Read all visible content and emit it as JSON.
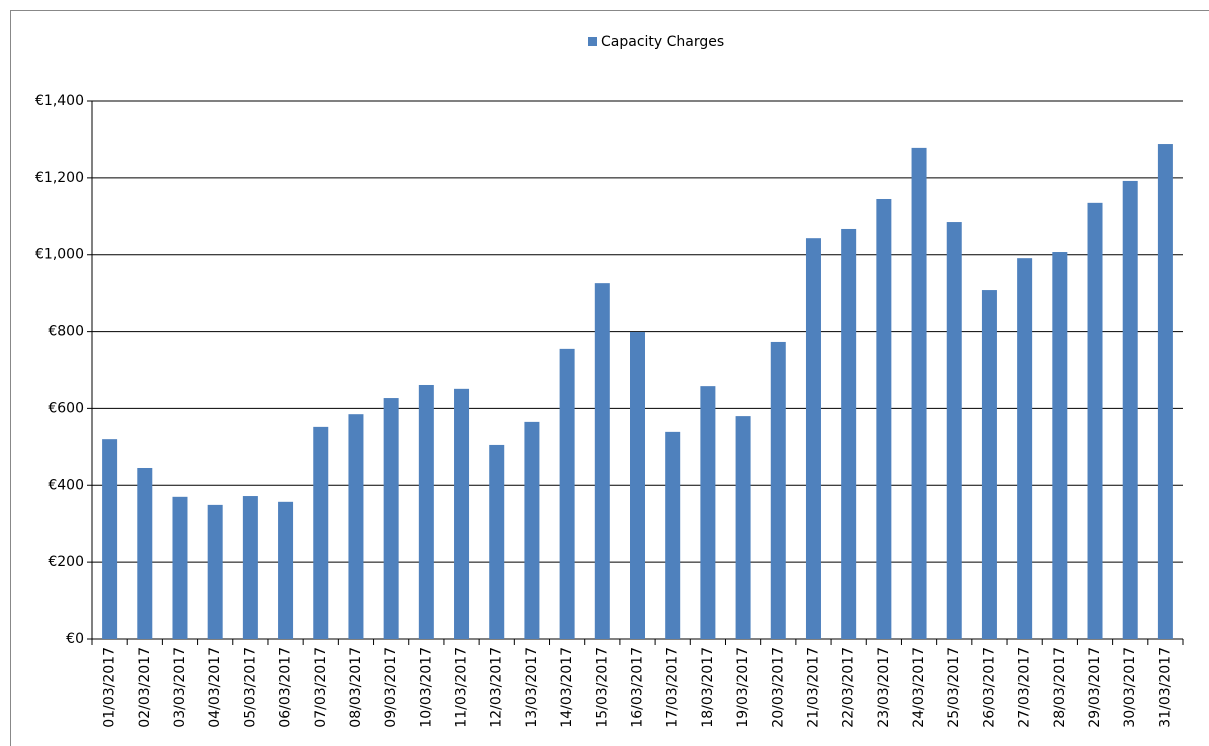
{
  "chart_data": {
    "type": "bar",
    "categories": [
      "01/03/2017",
      "02/03/2017",
      "03/03/2017",
      "04/03/2017",
      "05/03/2017",
      "06/03/2017",
      "07/03/2017",
      "08/03/2017",
      "09/03/2017",
      "10/03/2017",
      "11/03/2017",
      "12/03/2017",
      "13/03/2017",
      "14/03/2017",
      "15/03/2017",
      "16/03/2017",
      "17/03/2017",
      "18/03/2017",
      "19/03/2017",
      "20/03/2017",
      "21/03/2017",
      "22/03/2017",
      "23/03/2017",
      "24/03/2017",
      "25/03/2017",
      "26/03/2017",
      "27/03/2017",
      "28/03/2017",
      "29/03/2017",
      "30/03/2017",
      "31/03/2017"
    ],
    "series": [
      {
        "name": "Capacity Charges",
        "color": "#4f81bd",
        "values": [
          520,
          445,
          370,
          349,
          372,
          357,
          552,
          585,
          627,
          661,
          651,
          505,
          565,
          755,
          926,
          799,
          539,
          658,
          580,
          773,
          1043,
          1067,
          1145,
          1278,
          1085,
          908,
          991,
          1007,
          1135,
          1192,
          1288
        ]
      }
    ],
    "ylim": [
      0,
      1400
    ],
    "yticks": [
      {
        "value": 0,
        "label": "€0"
      },
      {
        "value": 200,
        "label": "€200"
      },
      {
        "value": 400,
        "label": "€400"
      },
      {
        "value": 600,
        "label": "€600"
      },
      {
        "value": 800,
        "label": "€800"
      },
      {
        "value": 1000,
        "label": "€1,000"
      },
      {
        "value": 1200,
        "label": "€1,200"
      },
      {
        "value": 1400,
        "label": "€1,400"
      }
    ],
    "grid": true,
    "legend": "top"
  }
}
